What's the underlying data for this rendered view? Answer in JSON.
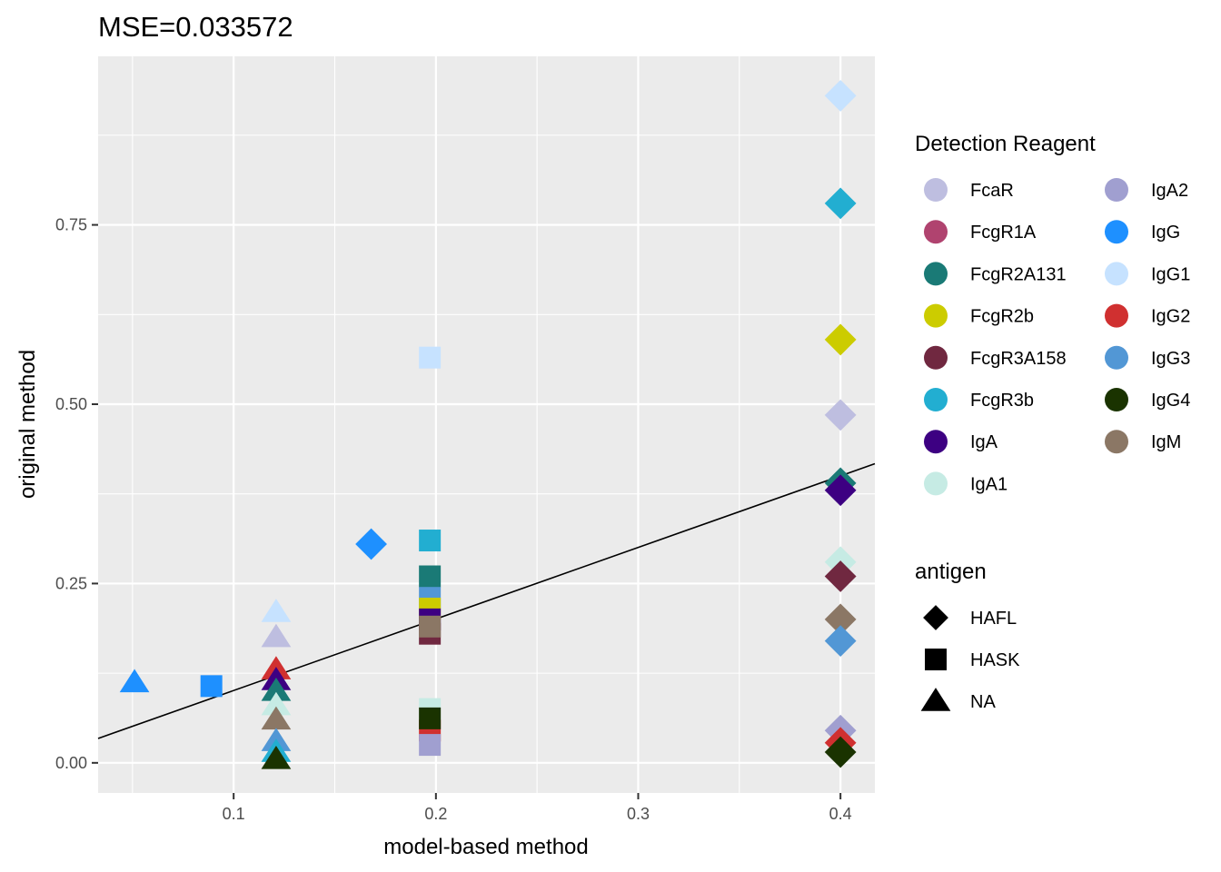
{
  "chart_data": {
    "type": "scatter",
    "title": "MSE=0.033572",
    "xlabel": "model-based method",
    "ylabel": "original method",
    "xlim": [
      0.033,
      0.417
    ],
    "ylim": [
      -0.042,
      0.985
    ],
    "x_ticks": [
      0.1,
      0.2,
      0.3,
      0.4
    ],
    "y_ticks": [
      0.0,
      0.25,
      0.5,
      0.75
    ],
    "x_tick_labels": [
      "0.1",
      "0.2",
      "0.3",
      "0.4"
    ],
    "y_tick_labels": [
      "0.00",
      "0.25",
      "0.50",
      "0.75"
    ],
    "grid": true,
    "fit_line": {
      "x": [
        0.033,
        0.417
      ],
      "y": [
        0.034,
        0.417
      ]
    },
    "legend_color": {
      "title": "Detection Reagent",
      "placement": "right",
      "entries": [
        {
          "label": "FcaR",
          "color": "#BEBEE0"
        },
        {
          "label": "FcgR1A",
          "color": "#B0436F"
        },
        {
          "label": "FcgR2A131",
          "color": "#1A7A76"
        },
        {
          "label": "FcgR2b",
          "color": "#CCCC00"
        },
        {
          "label": "FcgR3A158",
          "color": "#702840"
        },
        {
          "label": "FcgR3b",
          "color": "#22AED1"
        },
        {
          "label": "IgA",
          "color": "#3D0082"
        },
        {
          "label": "IgA1",
          "color": "#C6EBE4"
        },
        {
          "label": "IgA2",
          "color": "#A09FD0"
        },
        {
          "label": "IgG",
          "color": "#1E90FF"
        },
        {
          "label": "IgG1",
          "color": "#C6E2FF"
        },
        {
          "label": "IgG2",
          "color": "#D03030"
        },
        {
          "label": "IgG3",
          "color": "#5297D5"
        },
        {
          "label": "IgG4",
          "color": "#1A3300"
        },
        {
          "label": "IgM",
          "color": "#8B7765"
        }
      ]
    },
    "legend_shape": {
      "title": "antigen",
      "placement": "right",
      "entries": [
        {
          "label": "HAFL",
          "shape": "diamond"
        },
        {
          "label": "HASK",
          "shape": "square"
        },
        {
          "label": "NA",
          "shape": "triangle"
        }
      ]
    },
    "points": [
      {
        "x": 0.4,
        "y": 0.93,
        "reagent": "IgG1",
        "antigen": "HAFL"
      },
      {
        "x": 0.4,
        "y": 0.78,
        "reagent": "FcgR3b",
        "antigen": "HAFL"
      },
      {
        "x": 0.4,
        "y": 0.59,
        "reagent": "FcgR2b",
        "antigen": "HAFL"
      },
      {
        "x": 0.4,
        "y": 0.485,
        "reagent": "FcaR",
        "antigen": "HAFL"
      },
      {
        "x": 0.4,
        "y": 0.39,
        "reagent": "FcgR2A131",
        "antigen": "HAFL"
      },
      {
        "x": 0.4,
        "y": 0.38,
        "reagent": "IgA",
        "antigen": "HAFL"
      },
      {
        "x": 0.4,
        "y": 0.28,
        "reagent": "IgA1",
        "antigen": "HAFL"
      },
      {
        "x": 0.4,
        "y": 0.26,
        "reagent": "FcgR3A158",
        "antigen": "HAFL"
      },
      {
        "x": 0.4,
        "y": 0.2,
        "reagent": "IgM",
        "antigen": "HAFL"
      },
      {
        "x": 0.4,
        "y": 0.17,
        "reagent": "IgG3",
        "antigen": "HAFL"
      },
      {
        "x": 0.4,
        "y": 0.045,
        "reagent": "IgA2",
        "antigen": "HAFL"
      },
      {
        "x": 0.4,
        "y": 0.028,
        "reagent": "IgG2",
        "antigen": "HAFL"
      },
      {
        "x": 0.4,
        "y": 0.015,
        "reagent": "IgG4",
        "antigen": "HAFL"
      },
      {
        "x": 0.168,
        "y": 0.305,
        "reagent": "IgG",
        "antigen": "HAFL"
      },
      {
        "x": 0.197,
        "y": 0.565,
        "reagent": "IgG1",
        "antigen": "HASK"
      },
      {
        "x": 0.197,
        "y": 0.31,
        "reagent": "FcgR3b",
        "antigen": "HASK"
      },
      {
        "x": 0.197,
        "y": 0.26,
        "reagent": "FcgR2A131",
        "antigen": "HASK"
      },
      {
        "x": 0.197,
        "y": 0.23,
        "reagent": "IgG3",
        "antigen": "HASK"
      },
      {
        "x": 0.197,
        "y": 0.215,
        "reagent": "FcgR2b",
        "antigen": "HASK"
      },
      {
        "x": 0.197,
        "y": 0.2,
        "reagent": "IgA",
        "antigen": "HASK"
      },
      {
        "x": 0.197,
        "y": 0.18,
        "reagent": "FcgR3A158",
        "antigen": "HASK"
      },
      {
        "x": 0.197,
        "y": 0.19,
        "reagent": "IgM",
        "antigen": "HASK"
      },
      {
        "x": 0.197,
        "y": 0.075,
        "reagent": "IgA1",
        "antigen": "HASK"
      },
      {
        "x": 0.197,
        "y": 0.045,
        "reagent": "IgG2",
        "antigen": "HASK"
      },
      {
        "x": 0.197,
        "y": 0.025,
        "reagent": "IgA2",
        "antigen": "HASK"
      },
      {
        "x": 0.197,
        "y": 0.062,
        "reagent": "IgG4",
        "antigen": "HASK"
      },
      {
        "x": 0.089,
        "y": 0.107,
        "reagent": "IgG",
        "antigen": "HASK"
      },
      {
        "x": 0.051,
        "y": 0.112,
        "reagent": "IgG",
        "antigen": "NA"
      },
      {
        "x": 0.121,
        "y": 0.21,
        "reagent": "IgG1",
        "antigen": "NA"
      },
      {
        "x": 0.121,
        "y": 0.175,
        "reagent": "FcaR",
        "antigen": "NA"
      },
      {
        "x": 0.121,
        "y": 0.13,
        "reagent": "IgG2",
        "antigen": "NA"
      },
      {
        "x": 0.121,
        "y": 0.115,
        "reagent": "IgA",
        "antigen": "NA"
      },
      {
        "x": 0.121,
        "y": 0.1,
        "reagent": "FcgR2A131",
        "antigen": "NA"
      },
      {
        "x": 0.121,
        "y": 0.08,
        "reagent": "IgA1",
        "antigen": "NA"
      },
      {
        "x": 0.121,
        "y": 0.06,
        "reagent": "IgM",
        "antigen": "NA"
      },
      {
        "x": 0.121,
        "y": 0.03,
        "reagent": "IgG3",
        "antigen": "NA"
      },
      {
        "x": 0.121,
        "y": 0.015,
        "reagent": "FcgR3b",
        "antigen": "NA"
      },
      {
        "x": 0.121,
        "y": 0.005,
        "reagent": "IgG4",
        "antigen": "NA"
      }
    ]
  }
}
